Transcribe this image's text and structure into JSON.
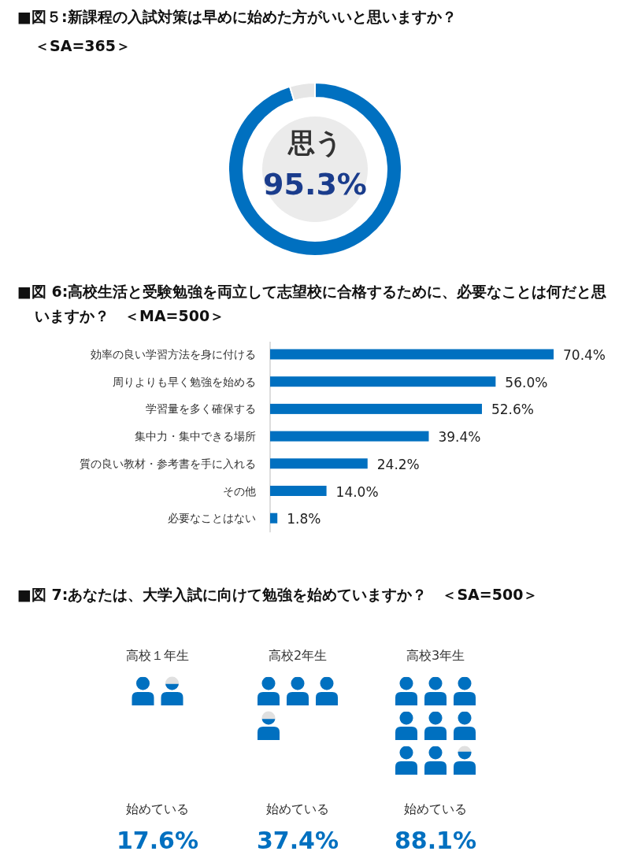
{
  "chart_data": [
    {
      "type": "donut",
      "title": "■図５:新課程の入試対策は早めに始めた方がいいと思いますか？",
      "subtitle": "＜SA=365＞",
      "categories": [
        "思う",
        null
      ],
      "values": [
        95.3,
        4.7
      ],
      "colors": [
        "#0070c0",
        "#e6e6e6"
      ],
      "value_labels": [
        "95.3%",
        null
      ]
    },
    {
      "type": "bar",
      "orientation": "horizontal",
      "title": "■図 6:高校生活と受験勉強を両立して志望校に合格するために、必要なことは何だと思いますか？　＜MA=500＞",
      "categories": [
        "効率の良い学習方法を身に付ける",
        "周りよりも早く勉強を始める",
        "学習量を多く確保する",
        "集中力・集中できる場所",
        "質の良い教材・参考書を手に入れる",
        "その他",
        "必要なことはない"
      ],
      "values": [
        70.4,
        56.0,
        52.6,
        39.4,
        24.2,
        14.0,
        1.8
      ],
      "color": "#0070c0",
      "value_labels": [
        "70.4%",
        "56.0%",
        "52.6%",
        "39.4%",
        "24.2%",
        "14.0%",
        "1.8%"
      ]
    },
    {
      "type": "other",
      "title": "■図 7:あなたは、大学入試に向けて勉強を始めていますか？　＜SA=500＞",
      "categories": [
        "高校１年生",
        "高校2年生",
        "高校3年生"
      ],
      "values": [
        17.6,
        37.4,
        88.1
      ],
      "color": "#0070c0",
      "value_labels": [
        "17.6%",
        "37.4%",
        "88.1%"
      ],
      "annotations": [
        {
          "text": "始めている",
          "x": "高校１年生"
        },
        {
          "text": "始めている",
          "x": "高校2年生"
        },
        {
          "text": "始めている",
          "x": "高校3年生"
        }
      ]
    }
  ]
}
